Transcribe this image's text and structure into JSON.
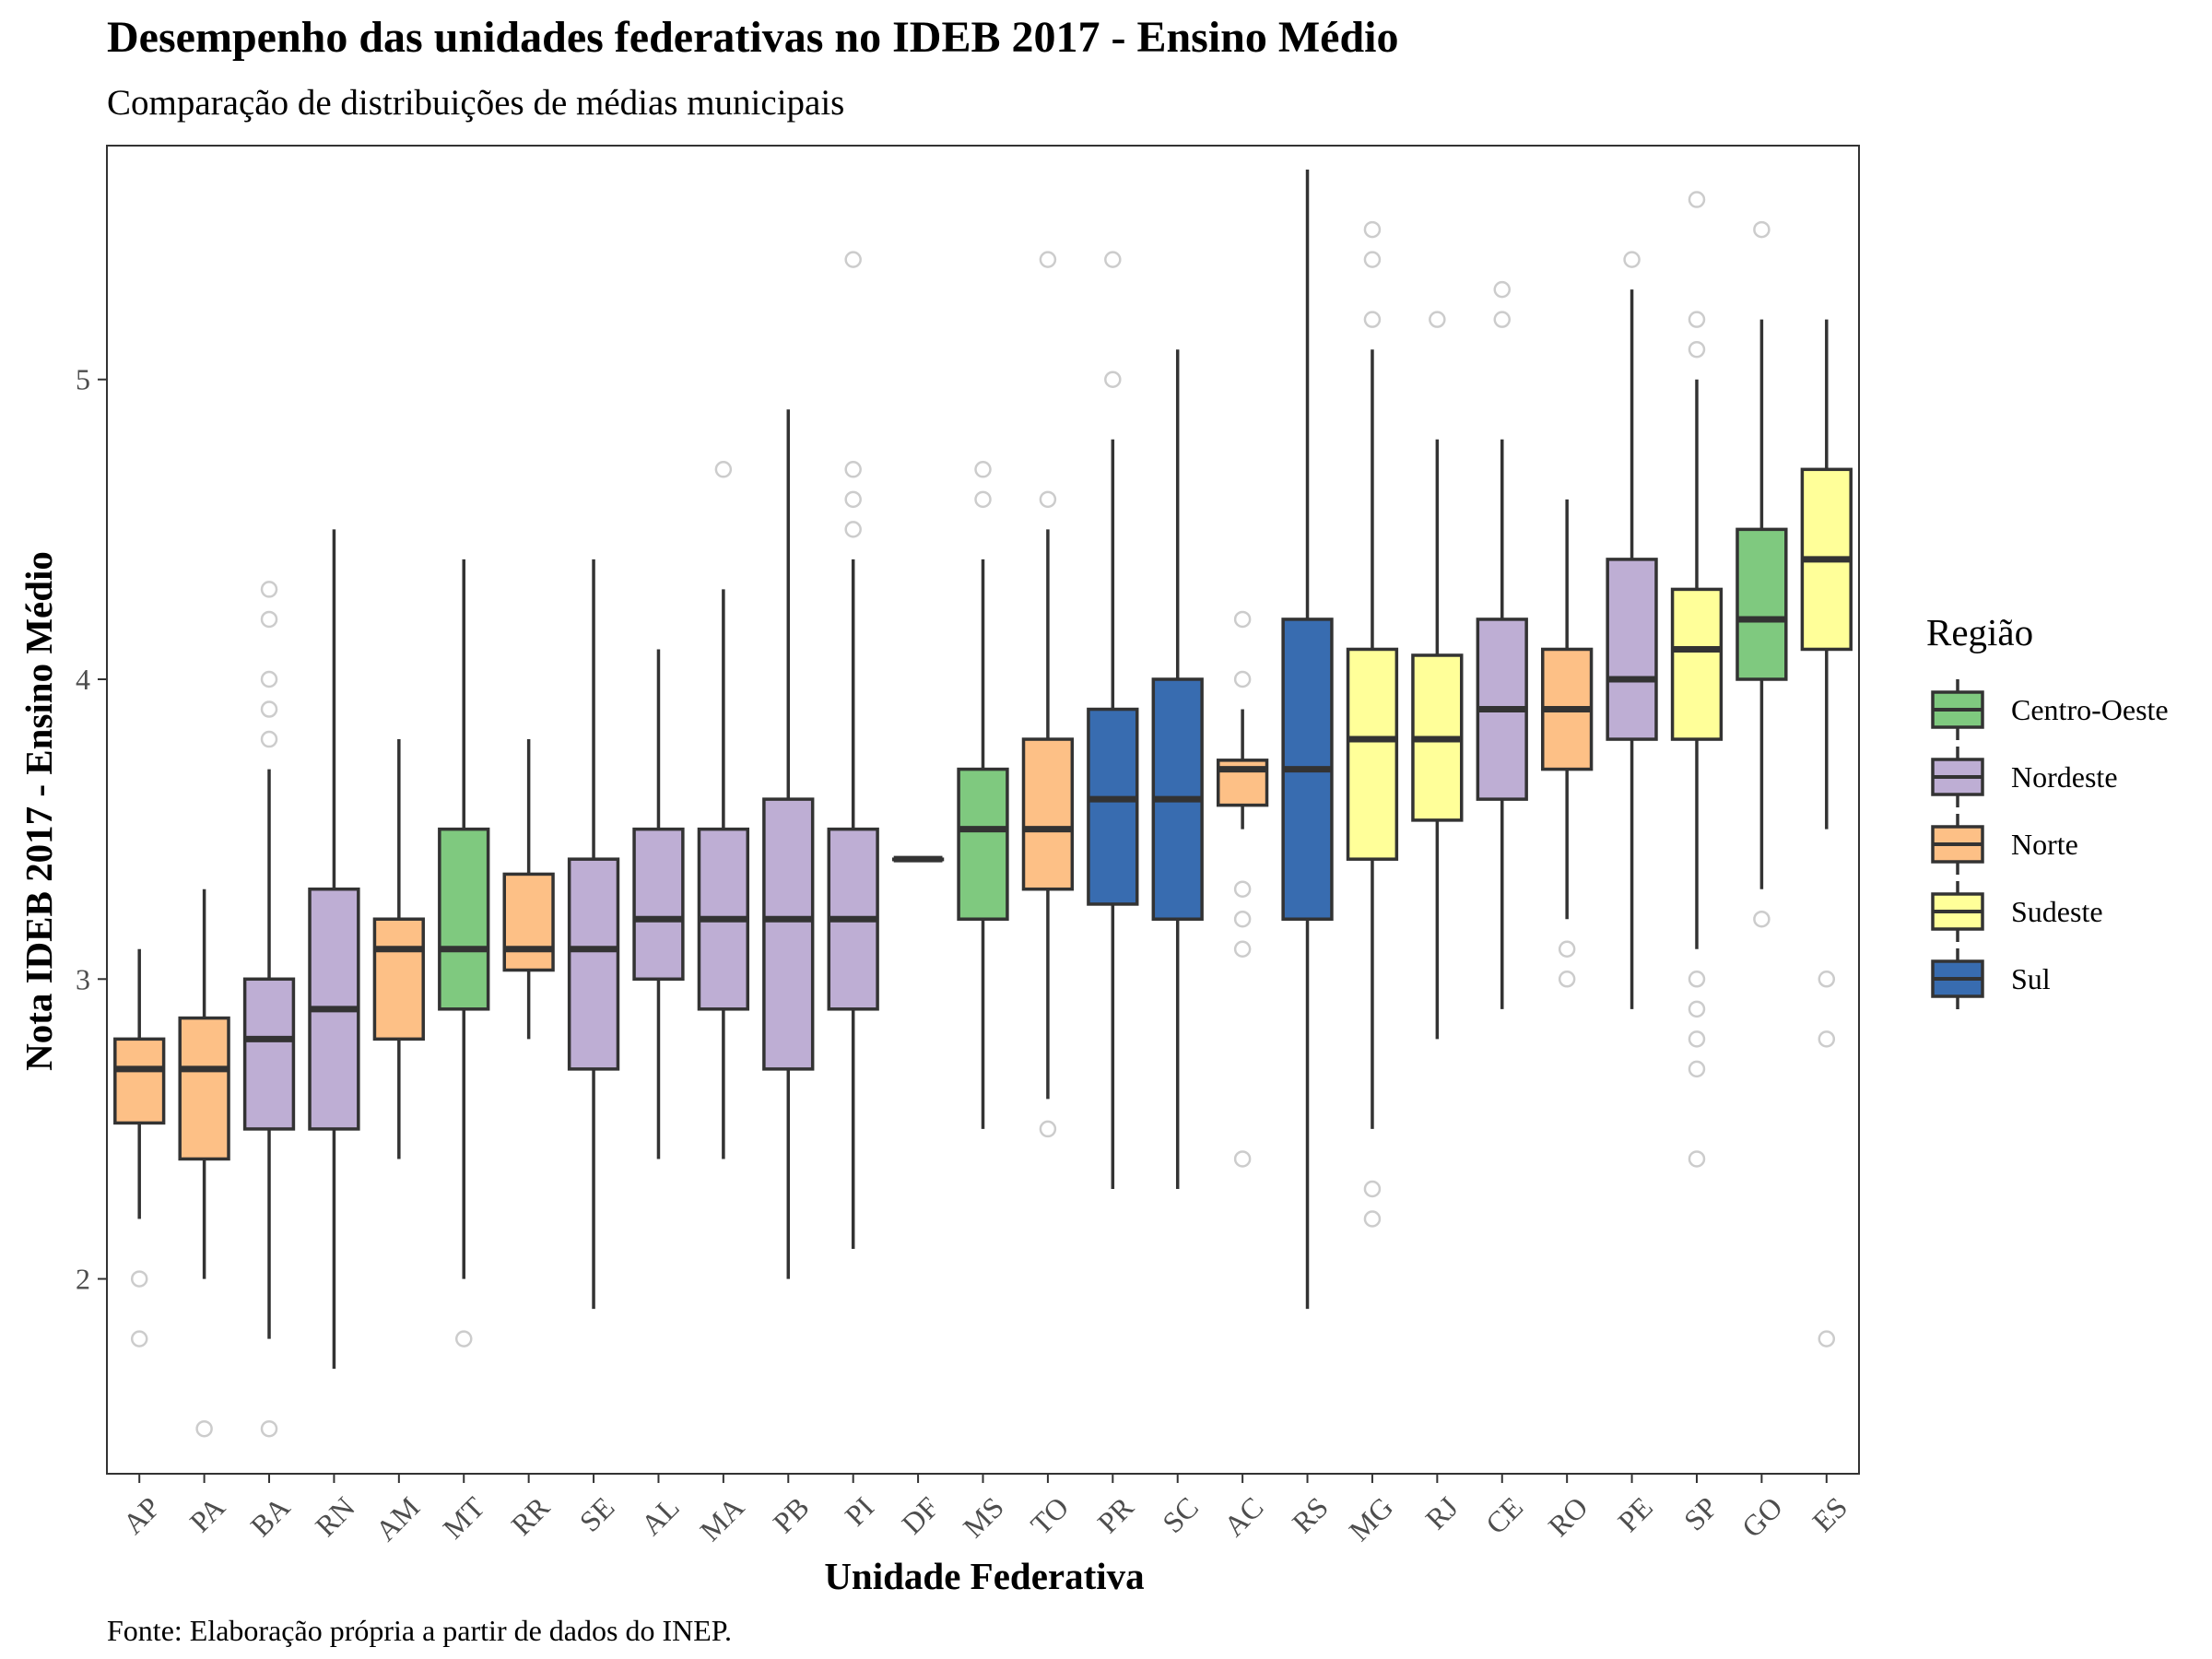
{
  "chart_data": {
    "type": "boxplot",
    "title": "Desempenho das unidades federativas no IDEB 2017 - Ensino Médio",
    "subtitle": "Comparação de distribuições de médias municipais",
    "xlabel": "Unidade Federativa",
    "ylabel": "Nota IDEB 2017 - Ensino Médio",
    "caption": "Fonte: Elaboração própria a partir de dados do INEP.",
    "ylim": [
      1.35,
      5.78
    ],
    "yticks": [
      2,
      3,
      4,
      5
    ],
    "grid": false,
    "legend": {
      "title": "Região",
      "position": "right",
      "entries": [
        {
          "name": "Centro-Oeste",
          "color": "#7fc97f"
        },
        {
          "name": "Nordeste",
          "color": "#beaed4"
        },
        {
          "name": "Norte",
          "color": "#fdc086"
        },
        {
          "name": "Sudeste",
          "color": "#ffff99"
        },
        {
          "name": "Sul",
          "color": "#386cb0"
        }
      ]
    },
    "boxes": [
      {
        "uf": "AP",
        "region": "Norte",
        "whisker_low": 2.2,
        "q1": 2.52,
        "median": 2.7,
        "q3": 2.8,
        "whisker_high": 3.1,
        "outliers": [
          2.0,
          1.8
        ]
      },
      {
        "uf": "PA",
        "region": "Norte",
        "whisker_low": 2.0,
        "q1": 2.4,
        "median": 2.7,
        "q3": 2.87,
        "whisker_high": 3.3,
        "outliers": [
          1.5
        ]
      },
      {
        "uf": "BA",
        "region": "Nordeste",
        "whisker_low": 1.8,
        "q1": 2.5,
        "median": 2.8,
        "q3": 3.0,
        "whisker_high": 3.7,
        "outliers": [
          4.3,
          4.2,
          4.0,
          3.9,
          3.8,
          1.5
        ]
      },
      {
        "uf": "RN",
        "region": "Nordeste",
        "whisker_low": 1.7,
        "q1": 2.5,
        "median": 2.9,
        "q3": 3.3,
        "whisker_high": 4.5,
        "outliers": []
      },
      {
        "uf": "AM",
        "region": "Norte",
        "whisker_low": 2.4,
        "q1": 2.8,
        "median": 3.1,
        "q3": 3.2,
        "whisker_high": 3.8,
        "outliers": []
      },
      {
        "uf": "MT",
        "region": "Centro-Oeste",
        "whisker_low": 2.0,
        "q1": 2.9,
        "median": 3.1,
        "q3": 3.5,
        "whisker_high": 4.4,
        "outliers": [
          1.8
        ]
      },
      {
        "uf": "RR",
        "region": "Norte",
        "whisker_low": 2.8,
        "q1": 3.03,
        "median": 3.1,
        "q3": 3.35,
        "whisker_high": 3.8,
        "outliers": []
      },
      {
        "uf": "SE",
        "region": "Nordeste",
        "whisker_low": 1.9,
        "q1": 2.7,
        "median": 3.1,
        "q3": 3.4,
        "whisker_high": 4.4,
        "outliers": []
      },
      {
        "uf": "AL",
        "region": "Nordeste",
        "whisker_low": 2.4,
        "q1": 3.0,
        "median": 3.2,
        "q3": 3.5,
        "whisker_high": 4.1,
        "outliers": []
      },
      {
        "uf": "MA",
        "region": "Nordeste",
        "whisker_low": 2.4,
        "q1": 2.9,
        "median": 3.2,
        "q3": 3.5,
        "whisker_high": 4.3,
        "outliers": [
          4.7
        ]
      },
      {
        "uf": "PB",
        "region": "Nordeste",
        "whisker_low": 2.0,
        "q1": 2.7,
        "median": 3.2,
        "q3": 3.6,
        "whisker_high": 4.9,
        "outliers": []
      },
      {
        "uf": "PI",
        "region": "Nordeste",
        "whisker_low": 2.1,
        "q1": 2.9,
        "median": 3.2,
        "q3": 3.5,
        "whisker_high": 4.4,
        "outliers": [
          5.4,
          4.7,
          4.6,
          4.5
        ]
      },
      {
        "uf": "DF",
        "region": "Centro-Oeste",
        "whisker_low": 3.4,
        "q1": 3.4,
        "median": 3.4,
        "q3": 3.4,
        "whisker_high": 3.4,
        "outliers": []
      },
      {
        "uf": "MS",
        "region": "Centro-Oeste",
        "whisker_low": 2.5,
        "q1": 3.2,
        "median": 3.5,
        "q3": 3.7,
        "whisker_high": 4.4,
        "outliers": [
          4.7,
          4.6
        ]
      },
      {
        "uf": "TO",
        "region": "Norte",
        "whisker_low": 2.6,
        "q1": 3.3,
        "median": 3.5,
        "q3": 3.8,
        "whisker_high": 4.5,
        "outliers": [
          5.4,
          4.6,
          2.5
        ]
      },
      {
        "uf": "PR",
        "region": "Sul",
        "whisker_low": 2.3,
        "q1": 3.25,
        "median": 3.6,
        "q3": 3.9,
        "whisker_high": 4.8,
        "outliers": [
          5.4,
          5.0
        ]
      },
      {
        "uf": "SC",
        "region": "Sul",
        "whisker_low": 2.3,
        "q1": 3.2,
        "median": 3.6,
        "q3": 4.0,
        "whisker_high": 5.1,
        "outliers": []
      },
      {
        "uf": "AC",
        "region": "Norte",
        "whisker_low": 3.5,
        "q1": 3.58,
        "median": 3.7,
        "q3": 3.73,
        "whisker_high": 3.9,
        "outliers": [
          4.2,
          4.0,
          3.3,
          3.2,
          3.1,
          2.4
        ]
      },
      {
        "uf": "RS",
        "region": "Sul",
        "whisker_low": 1.9,
        "q1": 3.2,
        "median": 3.7,
        "q3": 4.2,
        "whisker_high": 5.7,
        "outliers": []
      },
      {
        "uf": "MG",
        "region": "Sudeste",
        "whisker_low": 2.5,
        "q1": 3.4,
        "median": 3.8,
        "q3": 4.1,
        "whisker_high": 5.1,
        "outliers": [
          5.5,
          5.4,
          5.2,
          2.3,
          2.2
        ]
      },
      {
        "uf": "RJ",
        "region": "Sudeste",
        "whisker_low": 2.8,
        "q1": 3.53,
        "median": 3.8,
        "q3": 4.08,
        "whisker_high": 4.8,
        "outliers": [
          5.2
        ]
      },
      {
        "uf": "CE",
        "region": "Nordeste",
        "whisker_low": 2.9,
        "q1": 3.6,
        "median": 3.9,
        "q3": 4.2,
        "whisker_high": 4.8,
        "outliers": [
          5.3,
          5.2
        ]
      },
      {
        "uf": "RO",
        "region": "Norte",
        "whisker_low": 3.2,
        "q1": 3.7,
        "median": 3.9,
        "q3": 4.1,
        "whisker_high": 4.6,
        "outliers": [
          3.1,
          3.0
        ]
      },
      {
        "uf": "PE",
        "region": "Nordeste",
        "whisker_low": 2.9,
        "q1": 3.8,
        "median": 4.0,
        "q3": 4.4,
        "whisker_high": 5.3,
        "outliers": [
          5.4
        ]
      },
      {
        "uf": "SP",
        "region": "Sudeste",
        "whisker_low": 3.1,
        "q1": 3.8,
        "median": 4.1,
        "q3": 4.3,
        "whisker_high": 5.0,
        "outliers": [
          5.6,
          5.2,
          5.1,
          3.0,
          2.9,
          2.8,
          2.7,
          2.4
        ]
      },
      {
        "uf": "GO",
        "region": "Centro-Oeste",
        "whisker_low": 3.3,
        "q1": 4.0,
        "median": 4.2,
        "q3": 4.5,
        "whisker_high": 5.2,
        "outliers": [
          5.5,
          3.2
        ]
      },
      {
        "uf": "ES",
        "region": "Sudeste",
        "whisker_low": 3.5,
        "q1": 4.1,
        "median": 4.4,
        "q3": 4.7,
        "whisker_high": 5.2,
        "outliers": [
          3.0,
          2.8,
          1.8
        ]
      }
    ]
  }
}
